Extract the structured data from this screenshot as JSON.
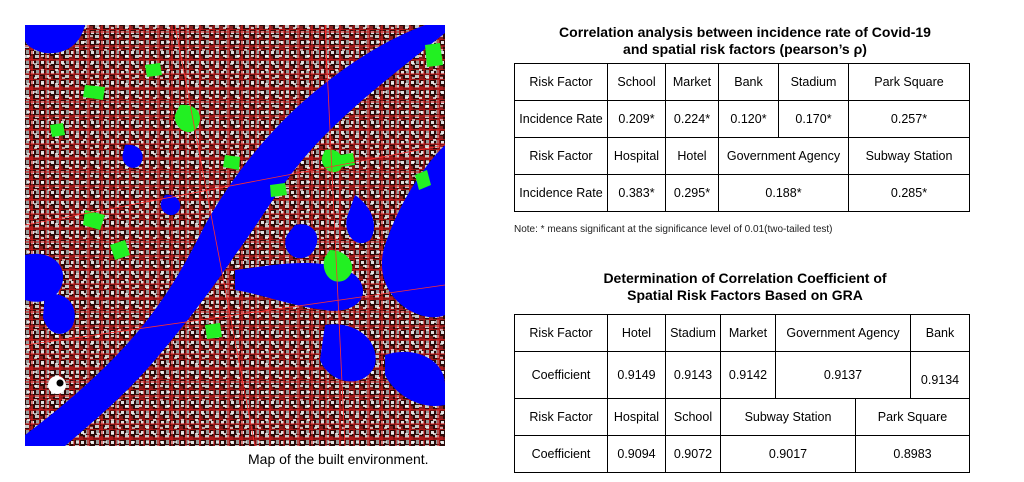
{
  "map": {
    "caption": "Map of the built environment."
  },
  "table1": {
    "title_line1": "Correlation analysis between incidence rate of Covid-19",
    "title_line2": "and spatial risk factors (pearson’s ρ)",
    "row1": [
      "Risk Factor",
      "School",
      "Market",
      "Bank",
      "Stadium",
      "Park Square"
    ],
    "row2": [
      "Incidence Rate",
      "0.209*",
      "0.224*",
      "0.120*",
      "0.170*",
      "0.257*"
    ],
    "row3": [
      "Risk Factor",
      "Hospital",
      "Hotel",
      "Government Agency",
      "Subway Station"
    ],
    "row4": [
      "Incidence Rate",
      "0.383*",
      "0.295*",
      "0.188*",
      "0.285*"
    ],
    "note": "Note: * means significant at the significance level of 0.01(two-tailed test)"
  },
  "table2": {
    "title_line1": "Determination of Correlation Coefficient of",
    "title_line2": "Spatial Risk Factors Based on GRA",
    "row1": [
      "Risk Factor",
      "Hotel",
      "Stadium",
      "Market",
      "Government Agency",
      "Bank"
    ],
    "row2": [
      "Coefficient",
      "0.9149",
      "0.9143",
      "0.9142",
      "0.9137",
      "0.9134"
    ],
    "row3": [
      "Risk Factor",
      "Hospital",
      "School",
      "Subway Station",
      "Park Square"
    ],
    "row4": [
      "Coefficient",
      "0.9094",
      "0.9072",
      "0.9017",
      "0.8983"
    ]
  }
}
